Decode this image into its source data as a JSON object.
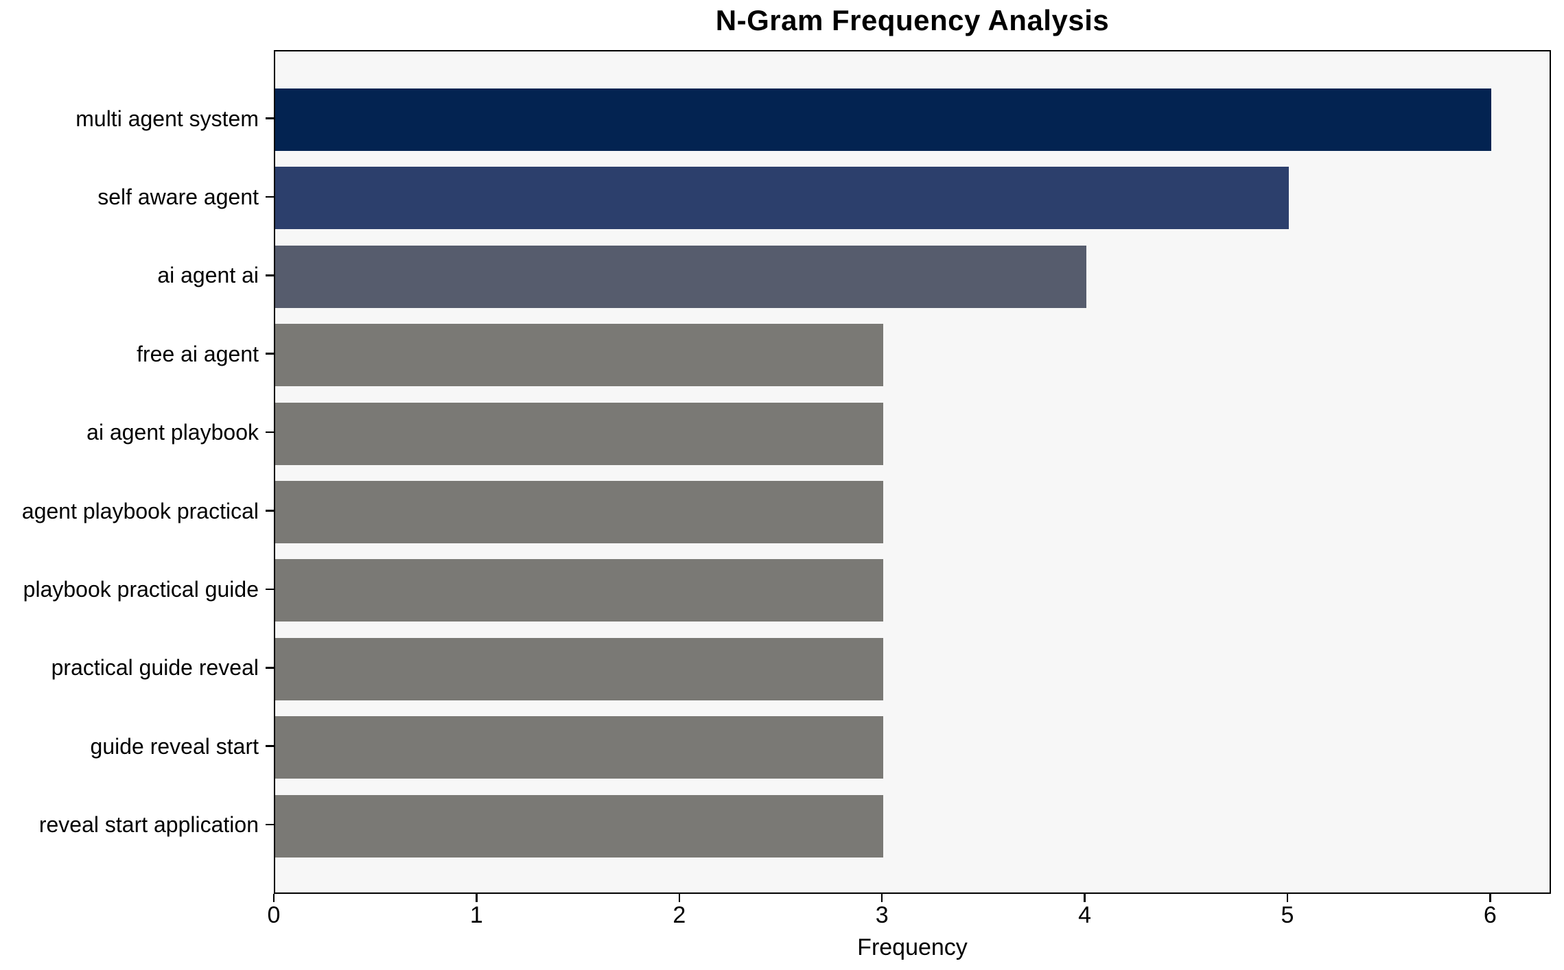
{
  "chart_data": {
    "type": "bar",
    "orientation": "horizontal",
    "title": "N-Gram Frequency Analysis",
    "xlabel": "Frequency",
    "ylabel": "",
    "categories": [
      "multi agent system",
      "self aware agent",
      "ai agent ai",
      "free ai agent",
      "ai agent playbook",
      "agent playbook practical",
      "playbook practical guide",
      "practical guide reveal",
      "guide reveal start",
      "reveal start application"
    ],
    "values": [
      6,
      5,
      4,
      3,
      3,
      3,
      3,
      3,
      3,
      3
    ],
    "bar_colors": [
      "#032351",
      "#2c3f6c",
      "#565c6d",
      "#7a7975",
      "#7a7975",
      "#7a7975",
      "#7a7975",
      "#7a7975",
      "#7a7975",
      "#7a7975"
    ],
    "xlim": [
      0,
      6.3
    ],
    "x_ticks": [
      0,
      1,
      2,
      3,
      4,
      5,
      6
    ],
    "grid": false,
    "legend": null,
    "plot_bg": "#f7f7f7",
    "figure_bg": "#ffffff",
    "frame_color": "#000000"
  }
}
